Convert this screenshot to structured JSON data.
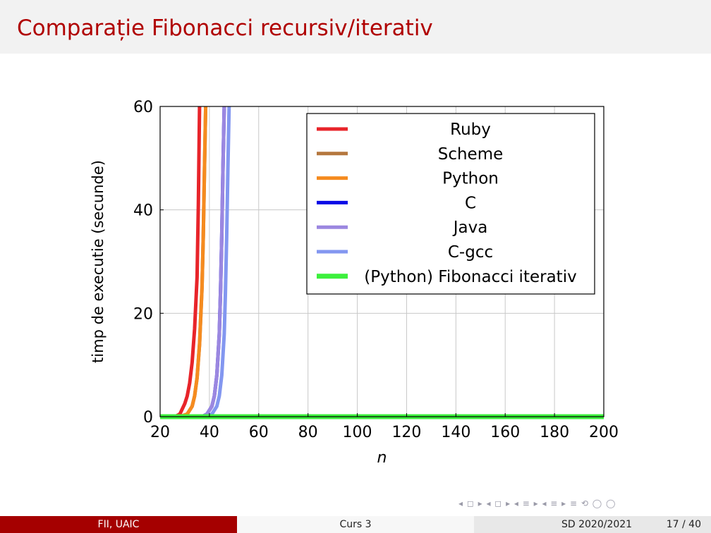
{
  "slide": {
    "title": "Comparație Fibonacci recursiv/iterativ",
    "nav_symbols": "◂ ◻ ▸ ◂ ◻ ▸ ◂ ≡ ▸ ◂ ≡ ▸   ≡   ⟲ ◯ ◯"
  },
  "footer": {
    "left": "FII, UAIC",
    "middle": "Curs 3",
    "course": "SD 2020/2021",
    "page": "17 / 40"
  },
  "chart_data": {
    "type": "line",
    "title": "",
    "xlabel": "n",
    "ylabel": "timp de executie (secunde)",
    "xlim": [
      20,
      200
    ],
    "ylim": [
      0,
      60
    ],
    "xticks": [
      20,
      40,
      60,
      80,
      100,
      120,
      140,
      160,
      180,
      200
    ],
    "yticks": [
      0,
      20,
      40,
      60
    ],
    "grid": true,
    "legend_position": "top-right",
    "series": [
      {
        "name": "Ruby",
        "color": "#e8242a",
        "x": [
          20,
          26,
          28,
          30,
          31,
          32,
          33,
          34,
          35,
          35.5,
          36
        ],
        "y": [
          0,
          0,
          0.5,
          2.5,
          4,
          6.5,
          10.5,
          17,
          27,
          41,
          60
        ]
      },
      {
        "name": "Scheme",
        "color": "#b5773e",
        "x": [
          20,
          28,
          31,
          33,
          34,
          35,
          36,
          37,
          37.5,
          38,
          38.5
        ],
        "y": [
          0,
          0,
          0.5,
          2,
          4,
          7.5,
          14,
          25,
          35,
          48,
          60
        ]
      },
      {
        "name": "Python",
        "color": "#f58b1f",
        "x": [
          20,
          28,
          31,
          33,
          34,
          35,
          36,
          37,
          37.5,
          38,
          38.5
        ],
        "y": [
          0,
          0,
          0.5,
          2,
          4,
          7.5,
          14,
          25,
          35,
          48,
          60
        ]
      },
      {
        "name": "C",
        "color": "#0b0be6",
        "x": [
          20,
          37,
          39,
          41,
          42,
          43,
          44,
          44.5,
          45,
          45.5,
          46
        ],
        "y": [
          0,
          0,
          0.5,
          2,
          4,
          8,
          16,
          24,
          35,
          48,
          60
        ]
      },
      {
        "name": "Java",
        "color": "#9b87e0",
        "x": [
          20,
          37,
          39,
          41,
          42,
          43,
          44,
          44.5,
          45,
          45.5,
          46
        ],
        "y": [
          0,
          0,
          0.5,
          2,
          4,
          8,
          16,
          24,
          35,
          48,
          60
        ]
      },
      {
        "name": "C-gcc",
        "color": "#8397f0",
        "x": [
          20,
          39,
          41,
          43,
          44,
          45,
          46,
          46.5,
          47,
          47.5,
          48
        ],
        "y": [
          0,
          0,
          0.5,
          2,
          4,
          8,
          16,
          24,
          35,
          48,
          60
        ]
      },
      {
        "name": "(Python) Fibonacci iterativ",
        "color": "#3cf03c",
        "x": [
          20,
          200
        ],
        "y": [
          0,
          0
        ]
      }
    ]
  }
}
